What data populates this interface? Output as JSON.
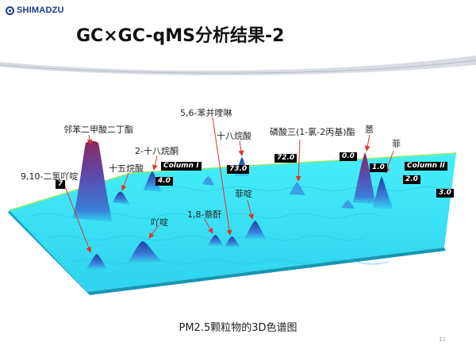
{
  "header": {
    "logo_text": "SHIMADZU",
    "title": "GC×GC-qMS分析结果-2"
  },
  "compounds": [
    "邻苯二甲酸二丁酯",
    "2-十八烷酮",
    "十五烷酸",
    "9,10-二氢吖啶",
    "吖啶",
    "5,6-苯并喹啉",
    "十八烷酸",
    "1,8-萘酐",
    "菲啶",
    "磷酸三(1-氯-2丙基)酯",
    "蒽",
    "菲"
  ],
  "axis_tags": [
    "Column I",
    "Column II",
    "4.0",
    "73.0",
    "72.0",
    "0.0",
    "1.0",
    "2.0",
    "3.0",
    "7"
  ],
  "caption": "PM2.5颗粒物的3D色谱图",
  "page_number": "11",
  "colors": {
    "surface": "#33e3f5",
    "surface_dark": "#1aa9c6",
    "peak_top": "#8a2860",
    "peak_mid": "#5b4bb0",
    "arrow": "#e0342b",
    "logo": "#1b3a8a"
  }
}
